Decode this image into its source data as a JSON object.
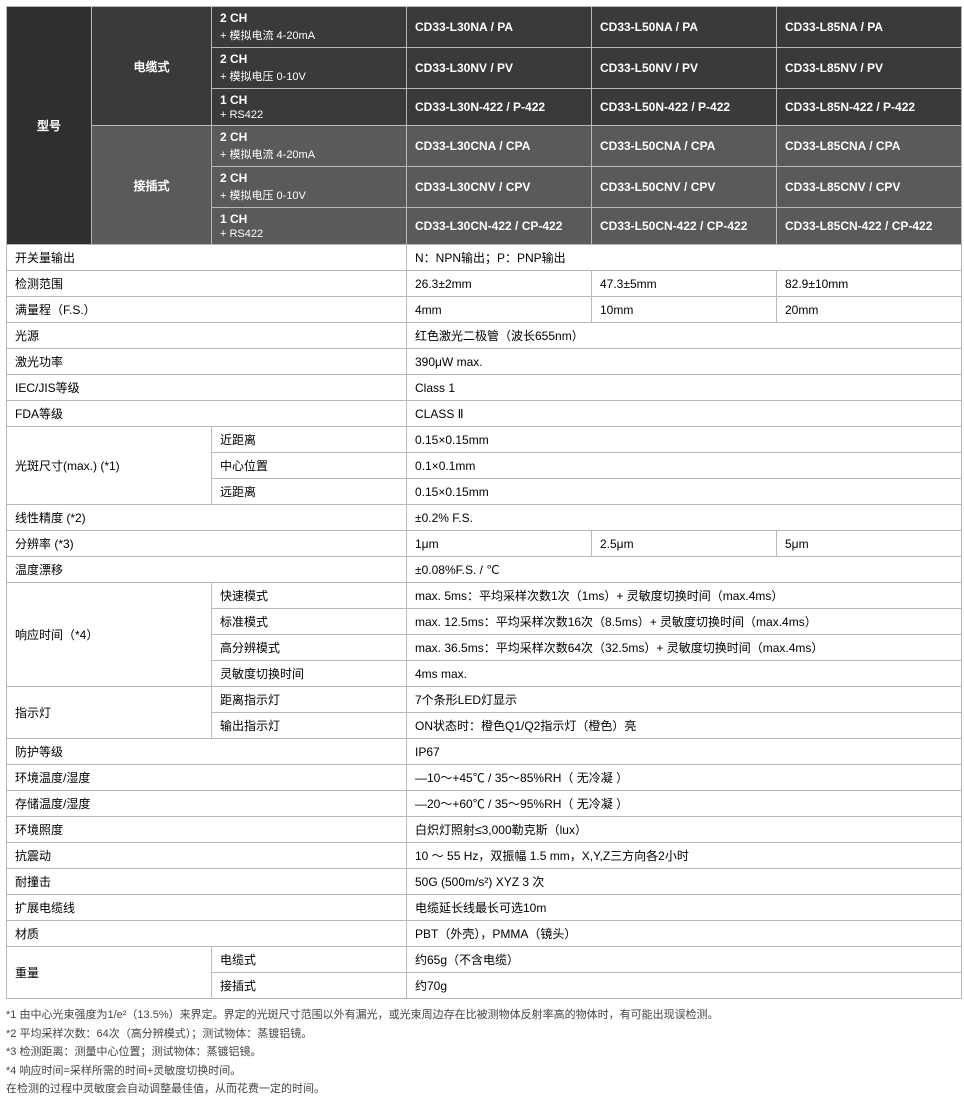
{
  "colWidths": [
    "85",
    "120",
    "195",
    "185",
    "185",
    "185"
  ],
  "header": {
    "modelLabel": "型号",
    "cableType": "电缆式",
    "connectorType": "接插式",
    "configs": [
      {
        "ch": "2 CH",
        "sub": "+ 模拟电流 4-20mA"
      },
      {
        "ch": "2 CH",
        "sub": "+ 模拟电压 0-10V"
      },
      {
        "ch": "1 CH",
        "sub": "+ RS422"
      },
      {
        "ch": "2 CH",
        "sub": "+ 模拟电流 4-20mA"
      },
      {
        "ch": "2 CH",
        "sub": "+ 模拟电压 0-10V"
      },
      {
        "ch": "1 CH",
        "sub": "+ RS422"
      }
    ],
    "models": [
      [
        "CD33-L30NA / PA",
        "CD33-L50NA / PA",
        "CD33-L85NA / PA"
      ],
      [
        "CD33-L30NV / PV",
        "CD33-L50NV / PV",
        "CD33-L85NV / PV"
      ],
      [
        "CD33-L30N-422 / P-422",
        "CD33-L50N-422 / P-422",
        "CD33-L85N-422 / P-422"
      ],
      [
        "CD33-L30CNA / CPA",
        "CD33-L50CNA / CPA",
        "CD33-L85CNA / CPA"
      ],
      [
        "CD33-L30CNV / CPV",
        "CD33-L50CNV / CPV",
        "CD33-L85CNV / CPV"
      ],
      [
        "CD33-L30CN-422 / CP-422",
        "CD33-L50CN-422 / CP-422",
        "CD33-L85CN-422 / CP-422"
      ]
    ]
  },
  "rows": [
    {
      "type": "full3",
      "label": "开关量输出",
      "val": "N：NPN输出；P：PNP输出"
    },
    {
      "type": "split3",
      "label": "检测范围",
      "vals": [
        "26.3±2mm",
        "47.3±5mm",
        "82.9±10mm"
      ]
    },
    {
      "type": "split3",
      "label": "满量程（F.S.）",
      "vals": [
        "4mm",
        "10mm",
        "20mm"
      ]
    },
    {
      "type": "full3",
      "label": "光源",
      "val": "红色激光二极管（波长655nm）"
    },
    {
      "type": "full3",
      "label": "激光功率",
      "val": "390μW max."
    },
    {
      "type": "full3",
      "label": "IEC/JIS等级",
      "val": "Class 1"
    },
    {
      "type": "full3",
      "label": "FDA等级",
      "val": "CLASS Ⅱ"
    },
    {
      "type": "group3",
      "label": "光斑尺寸(max.) (*1)",
      "subs": [
        {
          "sub": "近距离",
          "val": "0.15×0.15mm"
        },
        {
          "sub": "中心位置",
          "val": "0.1×0.1mm"
        },
        {
          "sub": "远距离",
          "val": "0.15×0.15mm"
        }
      ]
    },
    {
      "type": "full3",
      "label": "线性精度 (*2)",
      "val": "±0.2% F.S."
    },
    {
      "type": "split3",
      "label": "分辨率    (*3)",
      "vals": [
        "1μm",
        "2.5μm",
        "5μm"
      ]
    },
    {
      "type": "full3",
      "label": "温度漂移",
      "val": "±0.08%F.S. / ℃"
    },
    {
      "type": "group4",
      "label": "响应时间（*4）",
      "subs": [
        {
          "sub": "快速模式",
          "val": "max. 5ms：平均采样次数1次（1ms）+ 灵敏度切换时间（max.4ms）"
        },
        {
          "sub": "标准模式",
          "val": "max. 12.5ms：平均采样次数16次（8.5ms）+ 灵敏度切换时间（max.4ms）"
        },
        {
          "sub": "高分辨模式",
          "val": "max. 36.5ms：平均采样次数64次（32.5ms）+ 灵敏度切换时间（max.4ms）"
        },
        {
          "sub": "灵敏度切换时间",
          "val": "4ms max."
        }
      ]
    },
    {
      "type": "group2",
      "label": "指示灯",
      "subs": [
        {
          "sub": "距离指示灯",
          "val": "7个条形LED灯显示"
        },
        {
          "sub": "输出指示灯",
          "val": "ON状态时：橙色Q1/Q2指示灯（橙色）亮"
        }
      ]
    },
    {
      "type": "full3",
      "label": "防护等级",
      "val": "IP67"
    },
    {
      "type": "full3",
      "label": "环境温度/湿度",
      "val": "—10～+45℃ / 35～85%RH（ 无冷凝 ）"
    },
    {
      "type": "full3",
      "label": "存储温度/湿度",
      "val": "—20～+60℃ / 35～95%RH（ 无冷凝 ）"
    },
    {
      "type": "full3",
      "label": "环境照度",
      "val": "白炽灯照射≤3,000勒克斯（lux）"
    },
    {
      "type": "full3",
      "label": "抗震动",
      "val": "10 ～ 55 Hz，双振幅  1.5 mm，X,Y,Z三方向各2小时"
    },
    {
      "type": "full3",
      "label": "耐撞击",
      "val": "50G (500m/s²) XYZ 3 次"
    },
    {
      "type": "full3",
      "label": "扩展电缆线",
      "val": "电缆延长线最长可选10m"
    },
    {
      "type": "full3",
      "label": "材质",
      "val": "PBT（外壳），PMMA（镜头）"
    },
    {
      "type": "group2",
      "label": "重量",
      "subs": [
        {
          "sub": "电缆式",
          "val": "约65g（不含电缆）"
        },
        {
          "sub": "接插式",
          "val": "约70g"
        }
      ]
    }
  ],
  "notes": [
    "*1 由中心光束强度为1/e²（13.5%）来界定。界定的光斑尺寸范围以外有漏光，或光束周边存在比被测物体反射率高的物体时，有可能出现误检测。",
    "*2 平均采样次数：64次（高分辨模式）；测试物体：蒸镀铝镜。",
    "*3 检测距离：测量中心位置；测试物体：蒸镀铝镜。",
    "*4 响应时间=采样所需的时间+灵敏度切换时间。",
    "  在检测的过程中灵敏度会自动调整最佳值，从而花费一定的时间。"
  ]
}
